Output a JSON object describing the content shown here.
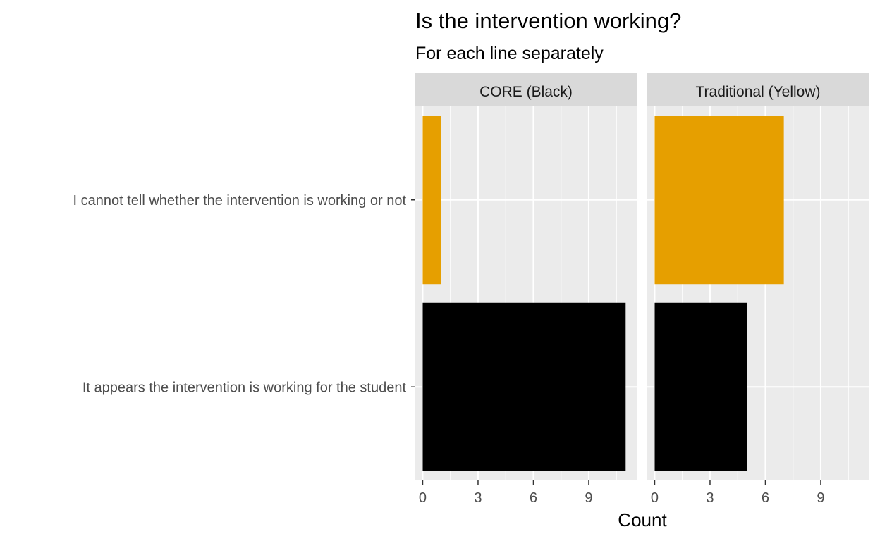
{
  "chart_data": {
    "type": "bar",
    "orientation": "horizontal",
    "title": "Is the intervention working?",
    "subtitle": "For each line separately",
    "xlabel": "Count",
    "ylabel": "",
    "xlim": [
      -0.4,
      11.6
    ],
    "x_ticks": [
      0,
      3,
      6,
      9
    ],
    "grid": true,
    "legend": "none",
    "categories": [
      "I cannot tell whether the intervention is working or not",
      "It appears the intervention is working for the student"
    ],
    "bar_colors": [
      "#E69F00",
      "#000000"
    ],
    "facets": [
      {
        "label": "CORE (Black)",
        "values": [
          1,
          11
        ]
      },
      {
        "label": "Traditional (Yellow)",
        "values": [
          7,
          5
        ]
      }
    ]
  },
  "colors": {
    "panel_background": "#EBEBEB",
    "strip_background": "#D9D9D9",
    "grid_major": "#FFFFFF"
  }
}
